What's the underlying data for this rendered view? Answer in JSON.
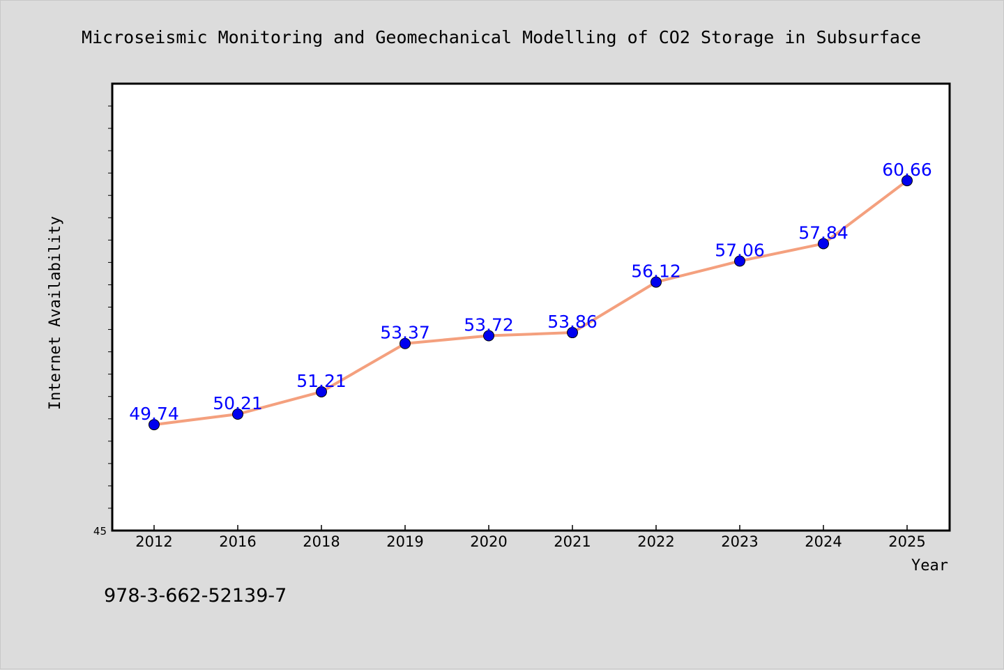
{
  "chart_data": {
    "type": "line",
    "title": "Microseismic Monitoring and Geomechanical Modelling of CO2 Storage in Subsurface",
    "xlabel": "Year",
    "ylabel": "Internet Availability",
    "categories": [
      "2012",
      "2016",
      "2018",
      "2019",
      "2020",
      "2021",
      "2022",
      "2023",
      "2024",
      "2025"
    ],
    "series": [
      {
        "values": [
          49.74,
          50.21,
          51.21,
          53.37,
          53.72,
          53.86,
          56.12,
          57.06,
          57.84,
          60.66
        ],
        "data_labels": [
          "49.74",
          "50.21",
          "51.21",
          "53.37",
          "53.72",
          "53.86",
          "56.12",
          "57.06",
          "57.84",
          "60.66"
        ]
      }
    ],
    "ylim": [
      45,
      65
    ],
    "y_min_label": "45",
    "y_minor_tick_step": 1,
    "grid": false,
    "legend": "none",
    "colors": {
      "line": "#f4a07e",
      "marker": "#0000ee",
      "data_label": "#0000ff",
      "plot_background": "#ffffff",
      "page_background": "#dcdcdc"
    }
  },
  "footer": {
    "isbn": "978-3-662-52139-7"
  }
}
